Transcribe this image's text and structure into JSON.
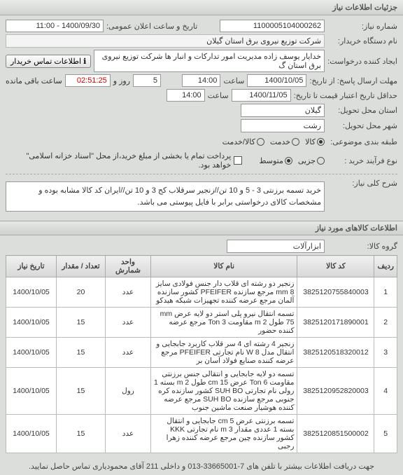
{
  "headers": {
    "main": "جزئیات اطلاعات نیاز"
  },
  "labels": {
    "need_no": "شماره نیاز:",
    "pub_date": "تاریخ و ساعت اعلان عمومی:",
    "buyer_org": "نام دستگاه خریدار:",
    "req_creator": "ایجاد کننده درخواست:",
    "contact_btn": "اطلاعات تماس خریدار",
    "deadline_from": "مهلت ارسال پاسخ: از تاریخ:",
    "time": "ساعت",
    "deadline_to": "حداقل تاریخ اعتبار قیمت تا تاریخ:",
    "province": "استان محل تحویل:",
    "city": "شهر محل تحویل:",
    "category": "طبقه بندی موضوعی:",
    "buy_type": "نوع فرآیند خرید :",
    "need_title": "شرح کلی نیاز:",
    "goods_info": "اطلاعات کالاهای مورد نیاز",
    "group": "گروه کالا:",
    "days": "روز و",
    "remaining": "ساعت باقی مانده",
    "footer": "جهت دریافت اطلاعات بیشتر با تلفن های 7-33665001-013 و داخلی 211 آقای محمودیاری تماس حاصل نمایید.",
    "pay_note": "پرداخت تمام یا بخشی از مبلغ خرید،از محل \"اسناد خزانه اسلامی\" خواهد بود."
  },
  "values": {
    "need_no": "1100005104000262",
    "pub_date": "1400/09/30 - 11:00",
    "buyer_org": "شرکت توزیع نیروی برق استان گیلان",
    "req_creator": "خدایار یوسف زاده مدیریت امور تدارکات و انبار ها شرکت توزیع نیروی برق استان گ",
    "d1_date": "1400/10/05",
    "d1_time": "14:00",
    "days": "5",
    "remain": "02:51:25",
    "d2_date": "1400/11/05",
    "d2_time": "14:00",
    "province": "گیلان",
    "city": "رشت",
    "group": "ابزارآلات",
    "need_desc": "خرید تسمه برزنتی 3 - 5 و 10 تن//زنجیر سرقلاب کج 3 و 10 تن//ایران کد کالا مشابه بوده و مشخصات کالای درخواستی برابر با فایل پیوستی می باشد."
  },
  "radios": {
    "r1": "کالا",
    "r2": "خدمت",
    "r3": "کالا/خدمت",
    "b1": "جزیی",
    "b2": "متوسط"
  },
  "table": {
    "cols": [
      "ردیف",
      "کد کالا",
      "نام کالا",
      "واحد شمارش",
      "تعداد / مقدار",
      "تاریخ نیاز"
    ],
    "rows": [
      [
        "1",
        "3825120755840003",
        "زنجیر دو رشته ای قلاب دار جنس فولادی سایز mm 8 مرجع سازنده PFEIFER کشور سازنده آلمان مرجع عرضه کننده تجهیزات شبکه هیدکو",
        "عدد",
        "20",
        "1400/10/05"
      ],
      [
        "2",
        "3825120171890001",
        "تسمه انتقال نیرو پلی استر دو لایه عرض mm 75 طول m 2 مقاومت Ton 3 مرجع عرضه کننده حضور",
        "عدد",
        "15",
        "1400/10/05"
      ],
      [
        "3",
        "3825120518320012",
        "زنجیر 4 رشته ای 4 سر قلاب کاربرد جابجایی و انتقال مدل W 8 نام تجارتی PFEIFER مرجع عرضه کننده صنایع فولاد آسان بر",
        "عدد",
        "15",
        "1400/10/05"
      ],
      [
        "4",
        "3825120952820003",
        "تسمه دو لایه جابجایی و انتقالی جنس برزنتی مقاومت Ton 6 عرض cm 15 طول m 2 بسته 1 رولی نام تجارتی SUH BO کشور سازنده کره جنوبی مرجع سازنده SUH BO مرجع عرضه کننده هوشیار صنعت ماشین جنوب",
        "رول",
        "15",
        "1400/10/05"
      ],
      [
        "5",
        "3825120851500002",
        "تسمه برزنتی عرض cm 5 جابجایی و انتقال بسته 1 عددی مقدار m 3 نام تجارتی KKK کشور سازنده چین مرجع عرضه کننده زهرا رجبی",
        "عدد",
        "15",
        "1400/10/05"
      ]
    ]
  },
  "colors": {
    "header_bg": "#d0d3d0",
    "body_bg": "#dcdedc"
  }
}
